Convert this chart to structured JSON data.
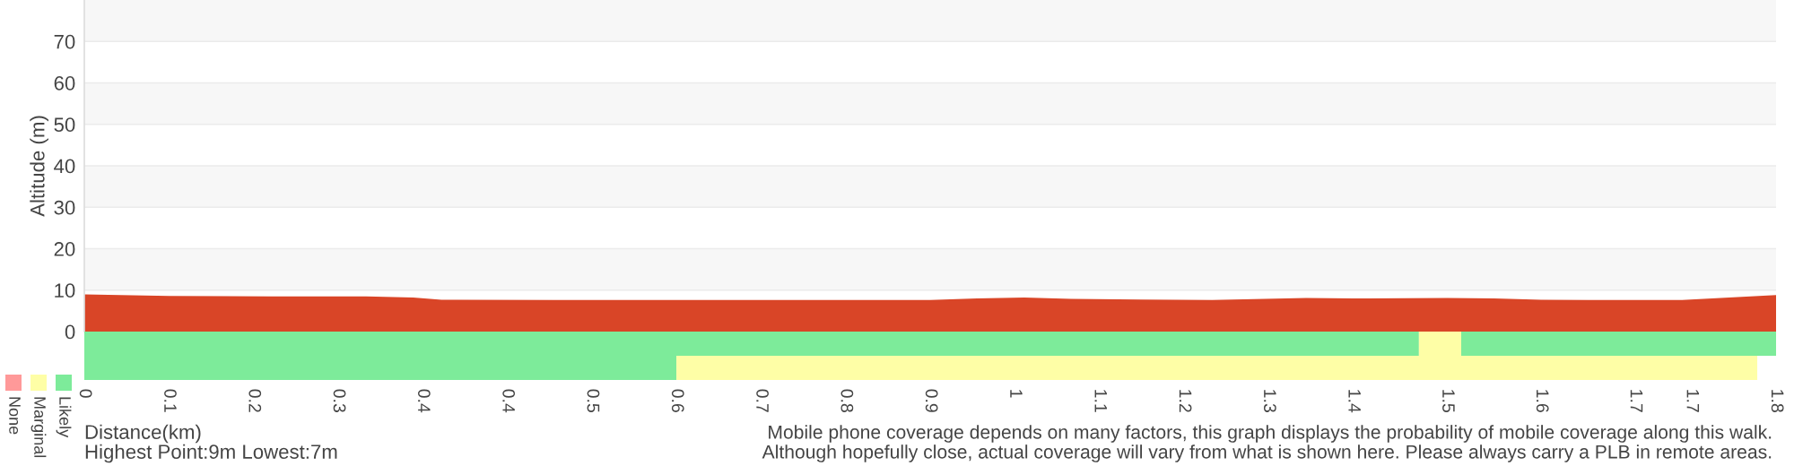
{
  "chart_data": [
    {
      "type": "area",
      "ylabel": "Altitude (m)",
      "x": [
        0,
        0.09,
        0.2,
        0.3,
        0.35,
        0.38,
        0.5,
        0.6,
        0.7,
        0.8,
        0.9,
        0.95,
        1.0,
        1.05,
        1.1,
        1.2,
        1.3,
        1.35,
        1.45,
        1.5,
        1.55,
        1.6,
        1.7,
        1.75,
        1.8
      ],
      "series": [
        {
          "color": "#d94527",
          "values": [
            9,
            8.6,
            8.5,
            8.5,
            8.2,
            7.7,
            7.6,
            7.6,
            7.6,
            7.6,
            7.6,
            8.0,
            8.2,
            7.9,
            7.8,
            7.6,
            8.1,
            8.0,
            8.1,
            8.0,
            7.7,
            7.6,
            7.6,
            8.2,
            8.8
          ]
        }
      ],
      "xlim": [
        0,
        1.8
      ],
      "ylim": [
        0,
        80
      ],
      "yticks": [
        0,
        10,
        20,
        30,
        40,
        50,
        60,
        70
      ],
      "grid": "y",
      "tick_labels": "y"
    },
    {
      "type": "bar",
      "orientation": "horizontal",
      "stacked": true,
      "categories": [
        null,
        null
      ],
      "xlabel": "Distance(km)",
      "series": [
        {
          "name": "Likely",
          "color": "#7deb9a",
          "values": [
            1.42,
            0.63
          ]
        },
        {
          "name": "Marginal",
          "color": "#fefea6",
          "values": [
            0.045,
            1.15
          ]
        },
        {
          "color": "#7deb9a",
          "values": [
            0.335,
            null
          ]
        },
        {
          "name": "None",
          "color": "#ff9999",
          "values": [
            null,
            null
          ]
        }
      ],
      "xlim": [
        0,
        1.8
      ],
      "xticks": [
        0,
        {
          "value": 0.09,
          "label": "0.1"
        },
        {
          "value": 0.18,
          "label": "0.2"
        },
        {
          "value": 0.27,
          "label": "0.3"
        },
        {
          "value": 0.36,
          "label": "0.4"
        },
        {
          "value": 0.45,
          "label": "0.4"
        },
        {
          "value": 0.54,
          "label": "0.5"
        },
        {
          "value": 0.63,
          "label": "0.6"
        },
        {
          "value": 0.72,
          "label": "0.7"
        },
        {
          "value": 0.81,
          "label": "0.8"
        },
        {
          "value": 0.9,
          "label": "0.9"
        },
        {
          "value": 0.99,
          "label": "1"
        },
        {
          "value": 1.08,
          "label": "1.1"
        },
        {
          "value": 1.17,
          "label": "1.2"
        },
        {
          "value": 1.26,
          "label": "1.3"
        },
        {
          "value": 1.35,
          "label": "1.4"
        },
        {
          "value": 1.45,
          "label": "1.5"
        },
        {
          "value": 1.55,
          "label": "1.6"
        },
        {
          "value": 1.65,
          "label": "1.7"
        },
        {
          "value": 1.71,
          "label": "1.7"
        },
        1.8
      ],
      "legend": "bottom left",
      "tick_labels": "x",
      "annotations": [
        "Highest Point:9m Lowest:7m",
        "Mobile phone coverage depends on many factors, this graph displays the probability of mobile coverage along this walk.",
        "Although hopefully close, actual coverage will vary from what is shown here. Please always carry a PLB in remote areas."
      ]
    }
  ]
}
